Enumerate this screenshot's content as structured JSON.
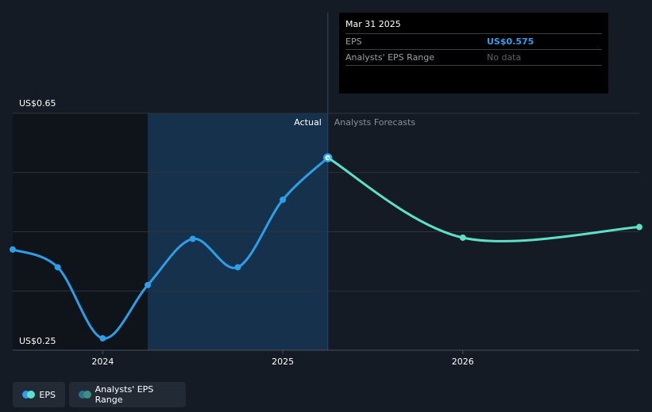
{
  "chart_data": {
    "type": "line",
    "title": "",
    "xlabel": "",
    "ylabel": "",
    "y_axis_labels": [
      "US$0.65",
      "US$0.25"
    ],
    "ylim": [
      0.25,
      0.65
    ],
    "xlim": [
      2023.55,
      2026.98
    ],
    "x_ticks": [
      {
        "x": 2024.0,
        "label": "2024"
      },
      {
        "x": 2025.0,
        "label": "2025"
      },
      {
        "x": 2026.0,
        "label": "2026"
      }
    ],
    "grid": true,
    "divider_x": 2025.25,
    "forecast_start_x": 2024.25,
    "series": [
      {
        "name": "EPS",
        "kind": "actual",
        "color": "#2d9ee8",
        "points": [
          {
            "x": 2023.5,
            "y": 0.42
          },
          {
            "x": 2023.75,
            "y": 0.39
          },
          {
            "x": 2024.0,
            "y": 0.27
          },
          {
            "x": 2024.25,
            "y": 0.36
          },
          {
            "x": 2024.5,
            "y": 0.438
          },
          {
            "x": 2024.75,
            "y": 0.39
          },
          {
            "x": 2025.0,
            "y": 0.504
          },
          {
            "x": 2025.25,
            "y": 0.575
          }
        ]
      },
      {
        "name": "EPS",
        "kind": "forecast",
        "color": "#5ce1c9",
        "points": [
          {
            "x": 2025.25,
            "y": 0.575
          },
          {
            "x": 2026.0,
            "y": 0.44
          },
          {
            "x": 2026.98,
            "y": 0.458
          }
        ]
      }
    ]
  },
  "regions": {
    "actual_label": "Actual",
    "forecast_label": "Analysts Forecasts"
  },
  "tooltip": {
    "date": "Mar 31 2025",
    "rows": [
      {
        "label": "EPS",
        "value": "US$0.575"
      },
      {
        "label": "Analysts' EPS Range",
        "value": "No data"
      }
    ]
  },
  "legend": {
    "items": [
      {
        "label": "EPS",
        "color1": "#2d9ee8",
        "color2": "#5ce1c9"
      },
      {
        "label": "Analysts' EPS Range",
        "color1": "#2d6f8e",
        "color2": "#3d8f86"
      }
    ]
  },
  "colors": {
    "background": "#151b24",
    "past_shade": "#0f141b",
    "highlight": "#15314b",
    "grid": "#2c333d",
    "divider": "#2b4a66"
  }
}
